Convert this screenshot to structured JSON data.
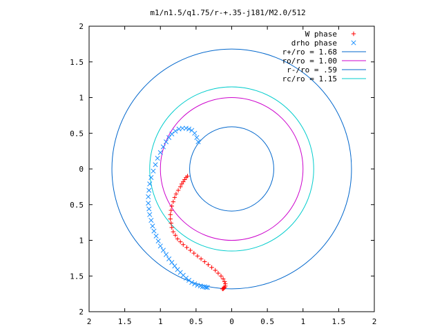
{
  "chart_data": {
    "type": "scatter",
    "title": "m1/n1.5/q1.75/r-+.35-j181/M2.0/512",
    "xlabel": "",
    "ylabel": "",
    "xlim": [
      2,
      -2
    ],
    "ylim": [
      -2,
      2
    ],
    "x_tick_labels": [
      "2",
      "1.5",
      "1",
      "0.5",
      "0",
      "0.5",
      "1",
      "1.5",
      "2"
    ],
    "y_tick_labels": [
      "2",
      "1.5",
      "1",
      "0.5",
      "0",
      "0.5",
      "1",
      "1.5",
      "2"
    ],
    "grid": false,
    "legend_position": "top-right",
    "series": [
      {
        "name": "W phase",
        "kind": "points",
        "marker": "plus",
        "color": "#ff0000",
        "x": [
          0.62,
          0.64,
          0.66,
          0.68,
          0.7,
          0.72,
          0.75,
          0.78,
          0.8,
          0.82,
          0.84,
          0.85,
          0.86,
          0.86,
          0.85,
          0.84,
          0.82,
          0.79,
          0.76,
          0.72,
          0.68,
          0.63,
          0.58,
          0.53,
          0.48,
          0.43,
          0.38,
          0.33,
          0.28,
          0.23,
          0.19,
          0.15,
          0.12,
          0.1,
          0.09,
          0.09,
          0.1,
          0.11,
          0.12,
          0.13
        ],
        "y": [
          -0.1,
          -0.12,
          -0.15,
          -0.18,
          -0.21,
          -0.25,
          -0.3,
          -0.35,
          -0.4,
          -0.46,
          -0.52,
          -0.58,
          -0.64,
          -0.7,
          -0.76,
          -0.82,
          -0.88,
          -0.93,
          -0.98,
          -1.02,
          -1.06,
          -1.1,
          -1.14,
          -1.18,
          -1.22,
          -1.26,
          -1.3,
          -1.34,
          -1.38,
          -1.42,
          -1.46,
          -1.5,
          -1.54,
          -1.58,
          -1.61,
          -1.64,
          -1.66,
          -1.67,
          -1.68,
          -1.68
        ]
      },
      {
        "name": "drho phase",
        "kind": "points",
        "marker": "cross",
        "color": "#1a90ff",
        "x": [
          0.47,
          0.49,
          0.52,
          0.56,
          0.6,
          0.64,
          0.69,
          0.74,
          0.79,
          0.84,
          0.88,
          0.92,
          0.96,
          1.0,
          1.04,
          1.07,
          1.1,
          1.13,
          1.15,
          1.16,
          1.17,
          1.17,
          1.16,
          1.15,
          1.13,
          1.11,
          1.09,
          1.06,
          1.03,
          1.0,
          0.96,
          0.92,
          0.88,
          0.84,
          0.8,
          0.76,
          0.72,
          0.68,
          0.64,
          0.6,
          0.56,
          0.52,
          0.48,
          0.44,
          0.41,
          0.38,
          0.36,
          0.34
        ],
        "y": [
          0.38,
          0.44,
          0.5,
          0.54,
          0.56,
          0.57,
          0.57,
          0.56,
          0.53,
          0.49,
          0.44,
          0.38,
          0.31,
          0.23,
          0.15,
          0.06,
          -0.03,
          -0.12,
          -0.21,
          -0.3,
          -0.39,
          -0.48,
          -0.56,
          -0.64,
          -0.72,
          -0.8,
          -0.87,
          -0.94,
          -1.01,
          -1.08,
          -1.14,
          -1.2,
          -1.26,
          -1.31,
          -1.36,
          -1.41,
          -1.45,
          -1.49,
          -1.53,
          -1.56,
          -1.59,
          -1.61,
          -1.63,
          -1.64,
          -1.65,
          -1.65,
          -1.66,
          -1.66
        ]
      },
      {
        "name": "r+/ro = 1.68",
        "kind": "circle",
        "radius": 1.68,
        "color": "#0066cc"
      },
      {
        "name": "ro/ro = 1.00",
        "kind": "circle",
        "radius": 1.0,
        "color": "#cc00cc"
      },
      {
        "name": "r-/ro = .59",
        "kind": "circle",
        "radius": 0.59,
        "color": "#0066cc"
      },
      {
        "name": "rc/ro = 1.15",
        "kind": "circle",
        "radius": 1.15,
        "color": "#00cccc"
      }
    ]
  }
}
